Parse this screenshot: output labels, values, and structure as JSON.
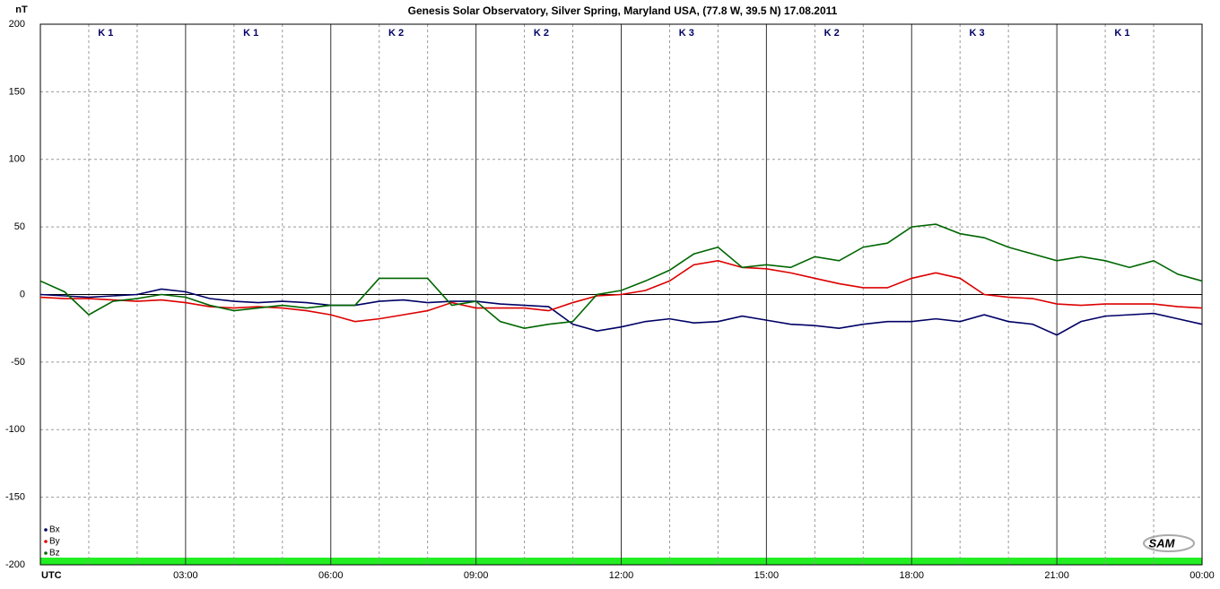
{
  "chart_data": {
    "type": "line",
    "title": "Genesis Solar Observatory, Silver Spring, Maryland USA, (77.8 W, 39.5 N)  17.08.2011",
    "y_label": "nT",
    "logo": "SAM",
    "k_indices": [
      "K 1",
      "K 1",
      "K 2",
      "K 2",
      "K 3",
      "K 2",
      "K 3",
      "K 1"
    ],
    "x": [
      0,
      0.5,
      1,
      1.5,
      2,
      2.5,
      3,
      3.5,
      4,
      4.5,
      5,
      5.5,
      6,
      6.5,
      7,
      7.5,
      8,
      8.5,
      9,
      9.5,
      10,
      10.5,
      11,
      11.5,
      12,
      12.5,
      13,
      13.5,
      14,
      14.5,
      15,
      15.5,
      16,
      16.5,
      17,
      17.5,
      18,
      18.5,
      19,
      19.5,
      20,
      20.5,
      21,
      21.5,
      22,
      22.5,
      23,
      23.5,
      24
    ],
    "xlim": [
      0,
      24
    ],
    "xticks": [
      {
        "value": 0,
        "label": "UTC"
      },
      {
        "value": 3,
        "label": "03:00"
      },
      {
        "value": 6,
        "label": "06:00"
      },
      {
        "value": 9,
        "label": "09:00"
      },
      {
        "value": 12,
        "label": "12:00"
      },
      {
        "value": 15,
        "label": "15:00"
      },
      {
        "value": 18,
        "label": "18:00"
      },
      {
        "value": 21,
        "label": "21:00"
      },
      {
        "value": 24,
        "label": "00:00"
      }
    ],
    "ylim": [
      -200,
      200
    ],
    "yticks": [
      -200,
      -150,
      -100,
      -50,
      0,
      50,
      100,
      150,
      200
    ],
    "grid": true,
    "legend": "bottom-left",
    "series": [
      {
        "name": "Bx",
        "color": "#000066",
        "values": [
          0,
          -1,
          -2,
          -1,
          0,
          4,
          2,
          -3,
          -5,
          -6,
          -5,
          -6,
          -8,
          -8,
          -5,
          -4,
          -6,
          -5,
          -5,
          -7,
          -8,
          -9,
          -22,
          -27,
          -24,
          -20,
          -18,
          -21,
          -20,
          -16,
          -19,
          -22,
          -23,
          -25,
          -22,
          -20,
          -20,
          -18,
          -20,
          -15,
          -20,
          -22,
          -30,
          -20,
          -16,
          -15,
          -14,
          -18,
          -22
        ]
      },
      {
        "name": "By",
        "color": "#dd0000",
        "values": [
          -2,
          -3,
          -3,
          -4,
          -5,
          -4,
          -6,
          -9,
          -10,
          -9,
          -10,
          -12,
          -15,
          -20,
          -18,
          -15,
          -12,
          -6,
          -10,
          -10,
          -10,
          -12,
          -6,
          -1,
          0,
          3,
          10,
          22,
          25,
          20,
          19,
          16,
          12,
          8,
          5,
          5,
          12,
          16,
          12,
          0,
          -2,
          -3,
          -7,
          -8,
          -7,
          -7,
          -7,
          -9,
          -10
        ]
      },
      {
        "name": "Bz",
        "color": "#006600",
        "values": [
          10,
          2,
          -15,
          -5,
          -3,
          0,
          -2,
          -8,
          -12,
          -10,
          -8,
          -10,
          -8,
          -8,
          12,
          12,
          12,
          -8,
          -5,
          -20,
          -25,
          -22,
          -20,
          0,
          3,
          10,
          18,
          30,
          35,
          20,
          22,
          20,
          28,
          25,
          35,
          38,
          50,
          52,
          45,
          42,
          35,
          30,
          25,
          28,
          25,
          20,
          25,
          15,
          10
        ]
      }
    ]
  }
}
